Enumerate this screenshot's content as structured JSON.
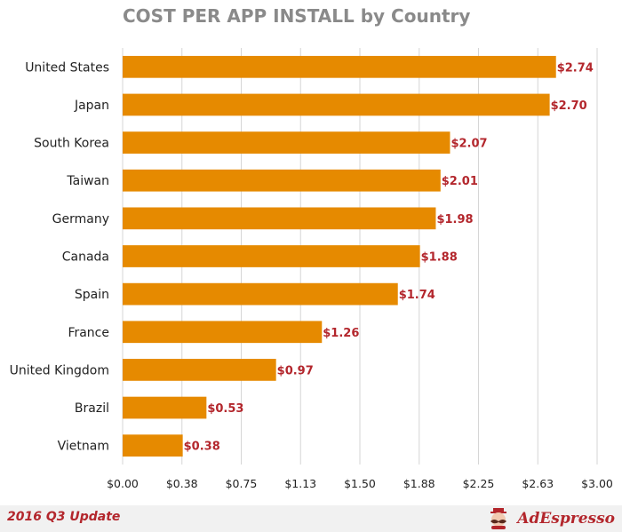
{
  "chart_data": {
    "type": "bar",
    "orientation": "horizontal",
    "title": "COST PER APP INSTALL by Country",
    "categories": [
      "United States",
      "Japan",
      "South Korea",
      "Taiwan",
      "Germany",
      "Canada",
      "Spain",
      "France",
      "United Kingdom",
      "Brazil",
      "Vietnam"
    ],
    "values": [
      2.74,
      2.7,
      2.07,
      2.01,
      1.98,
      1.88,
      1.74,
      1.26,
      0.97,
      0.53,
      0.38
    ],
    "value_labels": [
      "$2.74",
      "$2.70",
      "$2.07",
      "$2.01",
      "$1.98",
      "$1.88",
      "$1.74",
      "$1.26",
      "$0.97",
      "$0.53",
      "$0.38"
    ],
    "xticks": [
      0,
      0.375,
      0.75,
      1.125,
      1.5,
      1.875,
      2.25,
      2.625,
      3.0
    ],
    "xtick_labels": [
      "$0.00",
      "$0.38",
      "$0.75",
      "$1.13",
      "$1.50",
      "$1.88",
      "$2.25",
      "$2.63",
      "$3.00"
    ],
    "xlim": [
      0,
      3.0
    ],
    "grid": true,
    "legend": "none",
    "bar_color": "#e68a00",
    "value_label_color": "#b3262c"
  },
  "footer": {
    "update_label": "2016 Q3 Update",
    "brand_name": "AdEspresso",
    "brand_color": "#b3262c",
    "logo_icon": "mustache-mascot-icon"
  }
}
